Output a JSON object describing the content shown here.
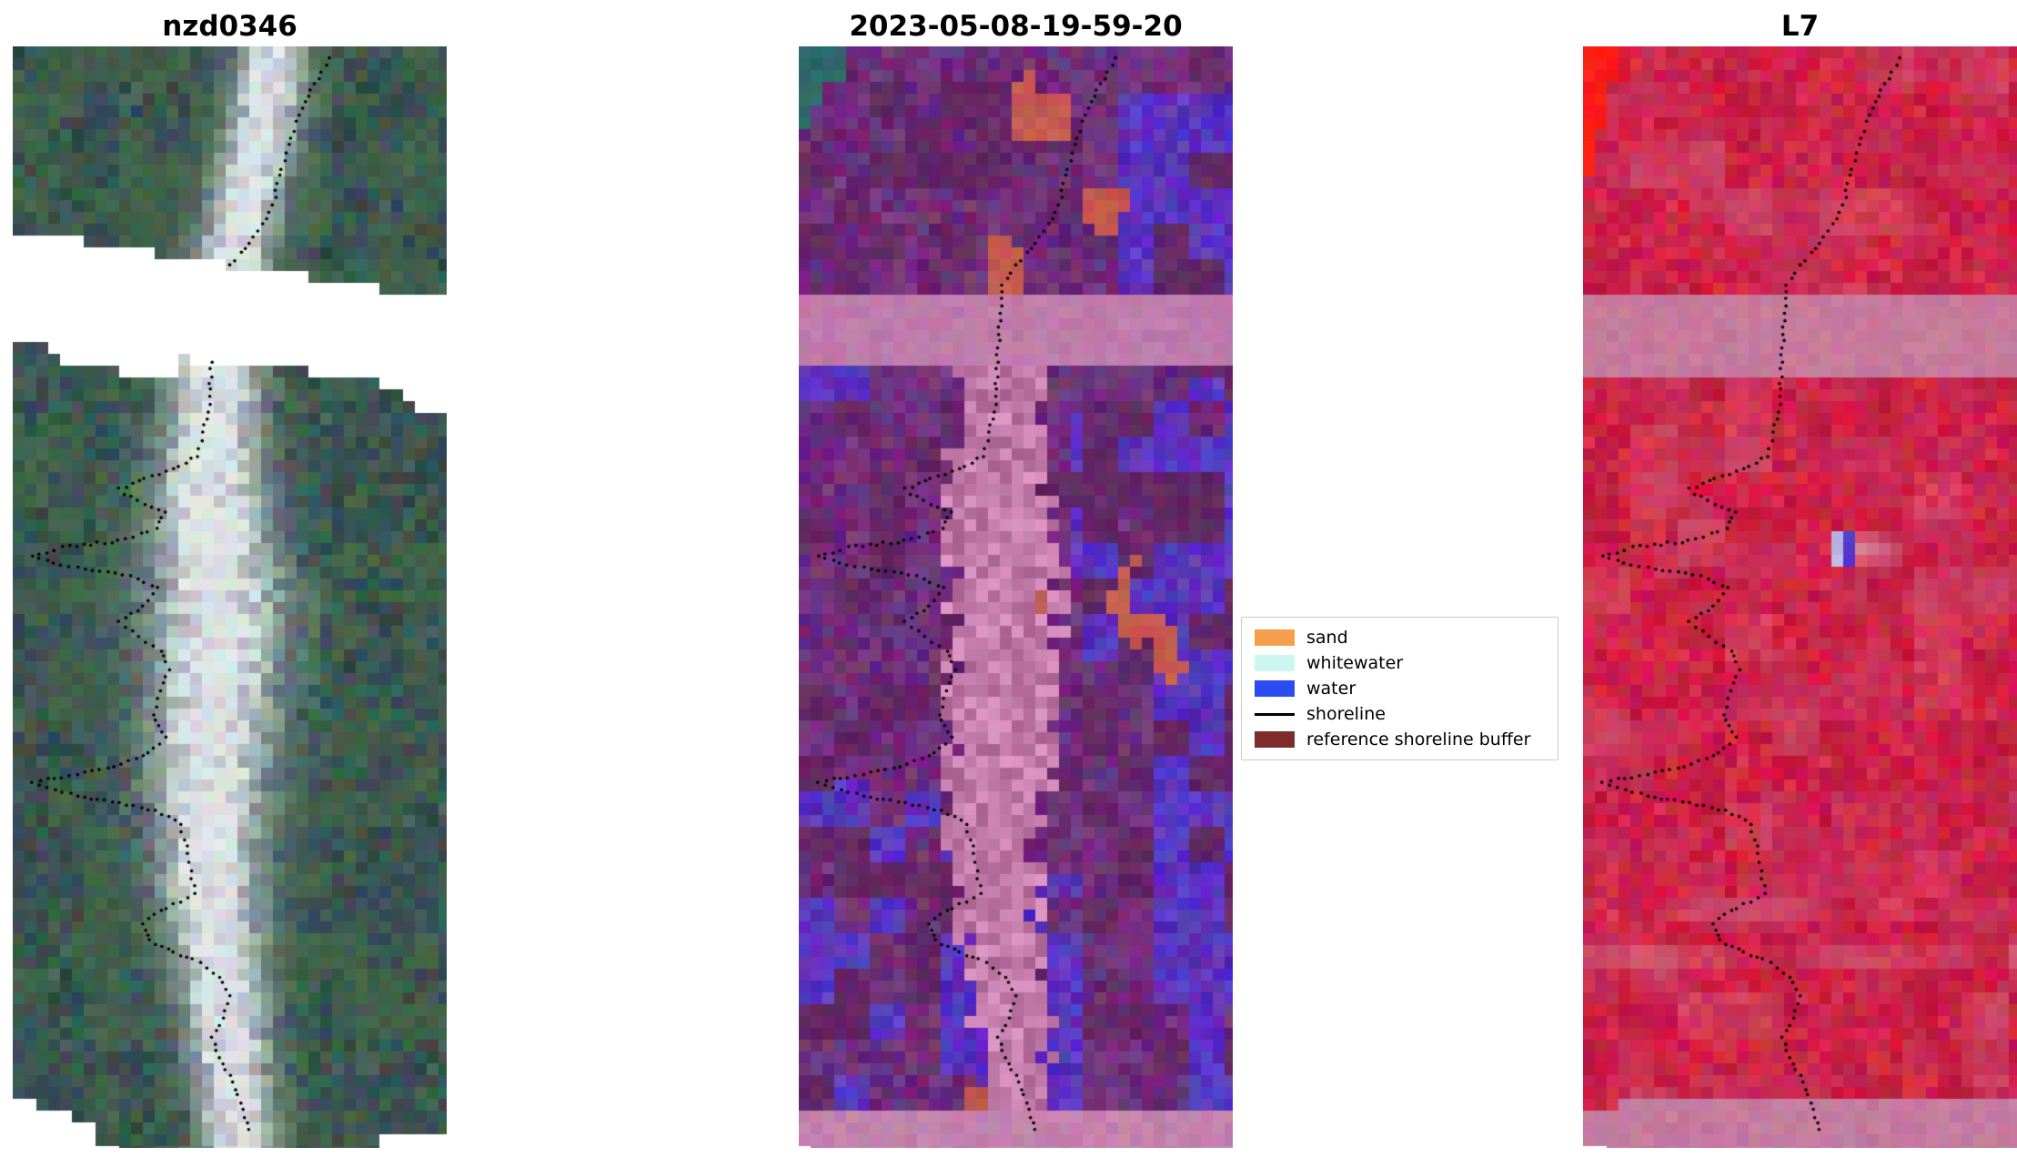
{
  "panels": [
    {
      "title": "nzd0346"
    },
    {
      "title": "2023-05-08-19-59-20"
    },
    {
      "title": "L7"
    }
  ],
  "legend": {
    "items": [
      {
        "label": "sand",
        "type": "patch",
        "color": "#f6a04d"
      },
      {
        "label": "whitewater",
        "type": "patch",
        "color": "#cdf5f1"
      },
      {
        "label": "water",
        "type": "patch",
        "color": "#2a4cf0"
      },
      {
        "label": "shoreline",
        "type": "line",
        "color": "#000000"
      },
      {
        "label": "reference shoreline buffer",
        "type": "patch",
        "color": "#7e2b2b"
      }
    ]
  },
  "colors": {
    "background": "#ffffff",
    "shoreline_dots": "#000000"
  },
  "palette": {
    "p1_dark": "#3a564e",
    "p1_sand": "#e2e6ea",
    "p2_land": "#6e2f7a",
    "p2_water": "#5a35c0",
    "p2_band": "#bf7cab",
    "p2_red": "#c45a50",
    "p2_teal": "#2f6a6a",
    "p2_bottom": "#c383ad",
    "p3_base": "#cf2448",
    "p3_band": "#c77b9c",
    "p3_corner": "#fb1d16",
    "p3_pond": "#4f3bd0",
    "p3_bottom": "#c57ba0"
  },
  "chart_data": {
    "type": "image",
    "figure": "CoastSat-style shoreline detection figure: three co-registered satellite image panels with a classification legend",
    "panels": [
      {
        "title": "nzd0346",
        "description": "True-colour satellite image of coastal site nzd0346: dark green-teal speckled land/sea with a bright white sand bar running vertically; a slanted white no-data gap (Landsat-7 SLC-off stripe) crosses the upper quarter; stepped white cut-outs at the bottom corners; black dotted detected shoreline follows the sand bar with wiggly lobes to the left."
      },
      {
        "title": "2023-05-08-19-59-20",
        "description": "Classified image for acquisition 2023-05-08 19:59:20: purple land, violet-blue water patches on the right and lower-left, a mauve-pink horizontal band across the no-data stripe, a mauve column along the sand bar, brick-red patches near the bar and right side, teal top-left corner, pink bottom strip, black dotted shoreline."
      },
      {
        "title": "L7",
        "description": "Landsat-7 false-colour composite: crimson scene with mauve horizontal no-data band, bright red patch in the top-left corner, a small blue pond with pale halo right of centre, lighter pink streaks near the bottom, mauve bottom strip, black dotted shoreline."
      }
    ],
    "legend_entries": [
      "sand",
      "whitewater",
      "water",
      "shoreline",
      "reference shoreline buffer"
    ]
  }
}
